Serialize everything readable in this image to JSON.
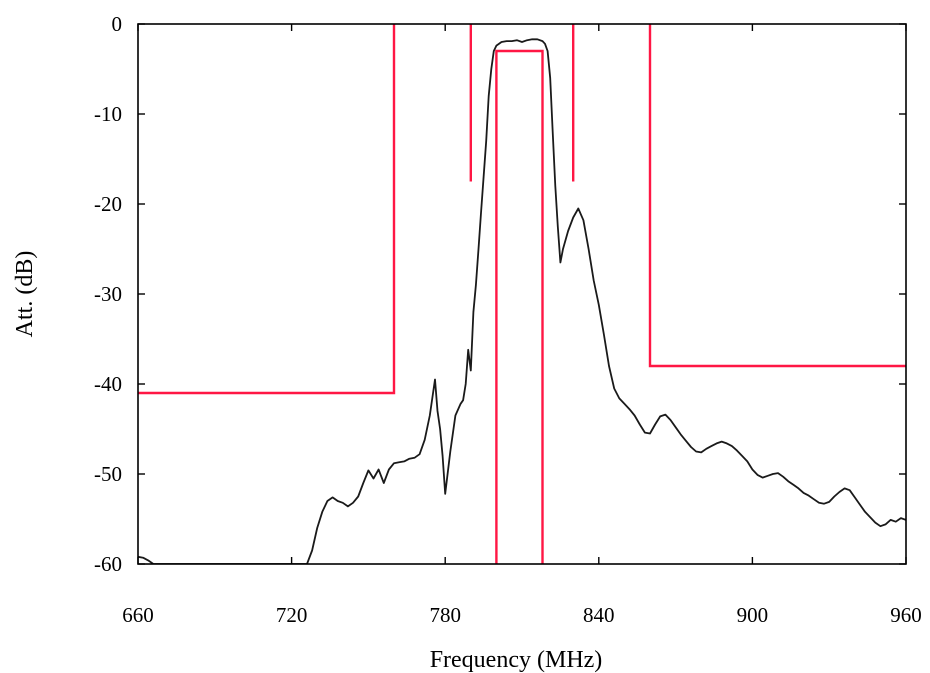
{
  "chart_data": {
    "type": "line",
    "title": "",
    "xlabel": "Frequency (MHz)",
    "ylabel": "Att. (dB)",
    "xlim": [
      660,
      960
    ],
    "ylim": [
      -60,
      0
    ],
    "x_ticks": [
      660,
      720,
      780,
      840,
      900,
      960
    ],
    "x_tick_labels": [
      "660",
      "720",
      "780",
      "840",
      "900",
      "960"
    ],
    "y_ticks": [
      0,
      -10,
      -20,
      -30,
      -40,
      -50,
      -60
    ],
    "y_tick_labels": [
      "0",
      "-10",
      "-20",
      "-30",
      "-40",
      "-50",
      "-60"
    ],
    "grid": false,
    "legend": "none",
    "colors": {
      "response": "#1a1a1a",
      "mask": "#ff1744",
      "frame": "#000000"
    },
    "series": [
      {
        "x": [
          660,
          662,
          664,
          666,
          726,
          728,
          730,
          732,
          734,
          736,
          738,
          740,
          742,
          744,
          746,
          748,
          750,
          752,
          754,
          756,
          758,
          760,
          762,
          764,
          766,
          768,
          770,
          772,
          774,
          775,
          776,
          777,
          778,
          779,
          780,
          782,
          784,
          786,
          787,
          788,
          789,
          790,
          791,
          792,
          793,
          794,
          795,
          796,
          797,
          798,
          799,
          800,
          802,
          804,
          806,
          808,
          810,
          812,
          814,
          816,
          818,
          819,
          820,
          821,
          822,
          823,
          824,
          825,
          826,
          828,
          830,
          832,
          834,
          836,
          838,
          840,
          842,
          844,
          846,
          848,
          850,
          852,
          854,
          856,
          858,
          860,
          862,
          864,
          866,
          868,
          870,
          872,
          874,
          876,
          878,
          880,
          882,
          884,
          886,
          888,
          890,
          892,
          894,
          896,
          898,
          900,
          902,
          904,
          906,
          908,
          910,
          912,
          914,
          916,
          918,
          920,
          922,
          924,
          926,
          928,
          930,
          932,
          934,
          936,
          938,
          940,
          942,
          944,
          946,
          948,
          950,
          952,
          954,
          956,
          958,
          960
        ],
        "y": [
          -59.2,
          -59.3,
          -59.6,
          -60,
          -60,
          -58.5,
          -56,
          -54.2,
          -53,
          -52.6,
          -53,
          -53.2,
          -53.6,
          -53.2,
          -52.5,
          -51,
          -49.6,
          -50.5,
          -49.5,
          -51,
          -49.5,
          -48.8,
          -48.7,
          -48.6,
          -48.3,
          -48.2,
          -47.8,
          -46.2,
          -43.5,
          -41.5,
          -39.5,
          -43,
          -45,
          -48,
          -52.2,
          -47.5,
          -43.5,
          -42.2,
          -41.8,
          -40,
          -36.2,
          -38.5,
          -32,
          -29,
          -25,
          -21,
          -17,
          -13,
          -8,
          -5,
          -3,
          -2.4,
          -2,
          -1.9,
          -1.9,
          -1.8,
          -2,
          -1.8,
          -1.7,
          -1.7,
          -1.9,
          -2.2,
          -3,
          -6,
          -12,
          -18,
          -22.5,
          -26.5,
          -25,
          -23,
          -21.5,
          -20.5,
          -21.8,
          -25,
          -28.5,
          -31.2,
          -34.5,
          -38,
          -40.5,
          -41.6,
          -42.2,
          -42.8,
          -43.5,
          -44.5,
          -45.4,
          -45.5,
          -44.5,
          -43.6,
          -43.4,
          -44,
          -44.8,
          -45.6,
          -46.3,
          -47,
          -47.5,
          -47.6,
          -47.2,
          -46.9,
          -46.6,
          -46.4,
          -46.6,
          -46.9,
          -47.4,
          -48,
          -48.6,
          -49.5,
          -50.1,
          -50.4,
          -50.2,
          -50,
          -49.9,
          -50.3,
          -50.8,
          -51.2,
          -51.6,
          -52.1,
          -52.4,
          -52.8,
          -53.2,
          -53.3,
          -53.1,
          -52.5,
          -52,
          -51.6,
          -51.8,
          -52.6,
          -53.4,
          -54.2,
          -54.8,
          -55.4,
          -55.8,
          -55.6,
          -55.1,
          -55.3,
          -54.9,
          -55.1
        ]
      }
    ],
    "masks": [
      {
        "x": [
          660,
          760,
          760
        ],
        "y": [
          -41,
          -41,
          0
        ]
      },
      {
        "x": [
          790,
          790
        ],
        "y": [
          0,
          -17.5
        ]
      },
      {
        "x": [
          830,
          830
        ],
        "y": [
          0,
          -17.5
        ]
      },
      {
        "x": [
          800,
          800,
          818,
          818
        ],
        "y": [
          -60,
          -3,
          -3,
          -60
        ]
      },
      {
        "x": [
          860,
          860,
          960
        ],
        "y": [
          0,
          -38,
          -38
        ]
      }
    ]
  }
}
